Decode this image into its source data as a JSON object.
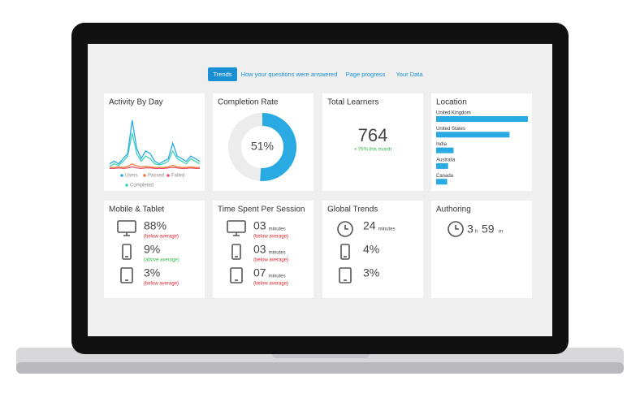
{
  "tabs": [
    "Trends",
    "How your questions were answered",
    "Page progress",
    "Your Data"
  ],
  "activity": {
    "title": "Activity By Day",
    "series": [
      {
        "name": "Users",
        "color": "#29aae2",
        "values": [
          1,
          1.5,
          1,
          2,
          3,
          9.5,
          4,
          2,
          3.5,
          3,
          1.5,
          1,
          1.5,
          2,
          5,
          2.5,
          2,
          1.5,
          2.5,
          2,
          1.5
        ]
      },
      {
        "name": "Passed",
        "color": "#f47c3c",
        "values": [
          0.3,
          0.3,
          0.4,
          0.3,
          0.5,
          1,
          0.6,
          0.4,
          0.5,
          0.4,
          0.3,
          0.3,
          0.3,
          0.4,
          0.7,
          0.4,
          0.3,
          0.3,
          0.4,
          0.3,
          0.3
        ]
      },
      {
        "name": "Failed",
        "color": "#e8536b",
        "values": [
          0.1,
          0.1,
          0.2,
          0.1,
          0.2,
          0.4,
          0.2,
          0.1,
          0.2,
          0.2,
          0.1,
          0.1,
          0.1,
          0.2,
          0.3,
          0.2,
          0.1,
          0.1,
          0.2,
          0.1,
          0.1
        ]
      },
      {
        "name": "Completed",
        "color": "#3fd1b5",
        "values": [
          0.5,
          1,
          0.7,
          1.5,
          2.5,
          7,
          3,
          1.5,
          2.5,
          2,
          1,
          0.8,
          1,
          1.5,
          3.5,
          2,
          1.5,
          1,
          2,
          1.5,
          1
        ]
      }
    ]
  },
  "completion": {
    "title": "Completion Rate",
    "value": 51,
    "label": "51%",
    "color": "#29aae2"
  },
  "learners": {
    "title": "Total Learners",
    "value": 764,
    "change": "+ 76% this month"
  },
  "location": {
    "title": "Location",
    "color": "#29aae2",
    "categories": [
      "United Kingdom",
      "United States",
      "India",
      "Australia",
      "Canada"
    ],
    "values": [
      100,
      80,
      19,
      13,
      12
    ]
  },
  "mobile": {
    "title": "Mobile & Tablet",
    "rows": [
      {
        "value": "88%",
        "note": "(below average)",
        "color": "#e0262e"
      },
      {
        "value": "9%",
        "note": "(above average)",
        "color": "#35b74a"
      },
      {
        "value": "3%",
        "note": "(below average)",
        "color": "#e0262e"
      }
    ]
  },
  "time": {
    "title": "Time Spent Per Session",
    "rows": [
      {
        "value": "03",
        "unit": "minutes",
        "note": "(below average)",
        "color": "#e0262e"
      },
      {
        "value": "03",
        "unit": "minutes",
        "note": "(below average)",
        "color": "#e0262e"
      },
      {
        "value": "07",
        "unit": "minutes",
        "note": "(below average)",
        "color": "#e0262e"
      }
    ]
  },
  "global": {
    "title": "Global Trends",
    "rows": [
      {
        "value": "24",
        "unit": "minutes"
      },
      {
        "value": "4%"
      },
      {
        "value": "3%"
      }
    ]
  },
  "authoring": {
    "title": "Authoring",
    "hours": "3",
    "hours_unit": "h",
    "minutes": "59",
    "minutes_unit": "m"
  }
}
